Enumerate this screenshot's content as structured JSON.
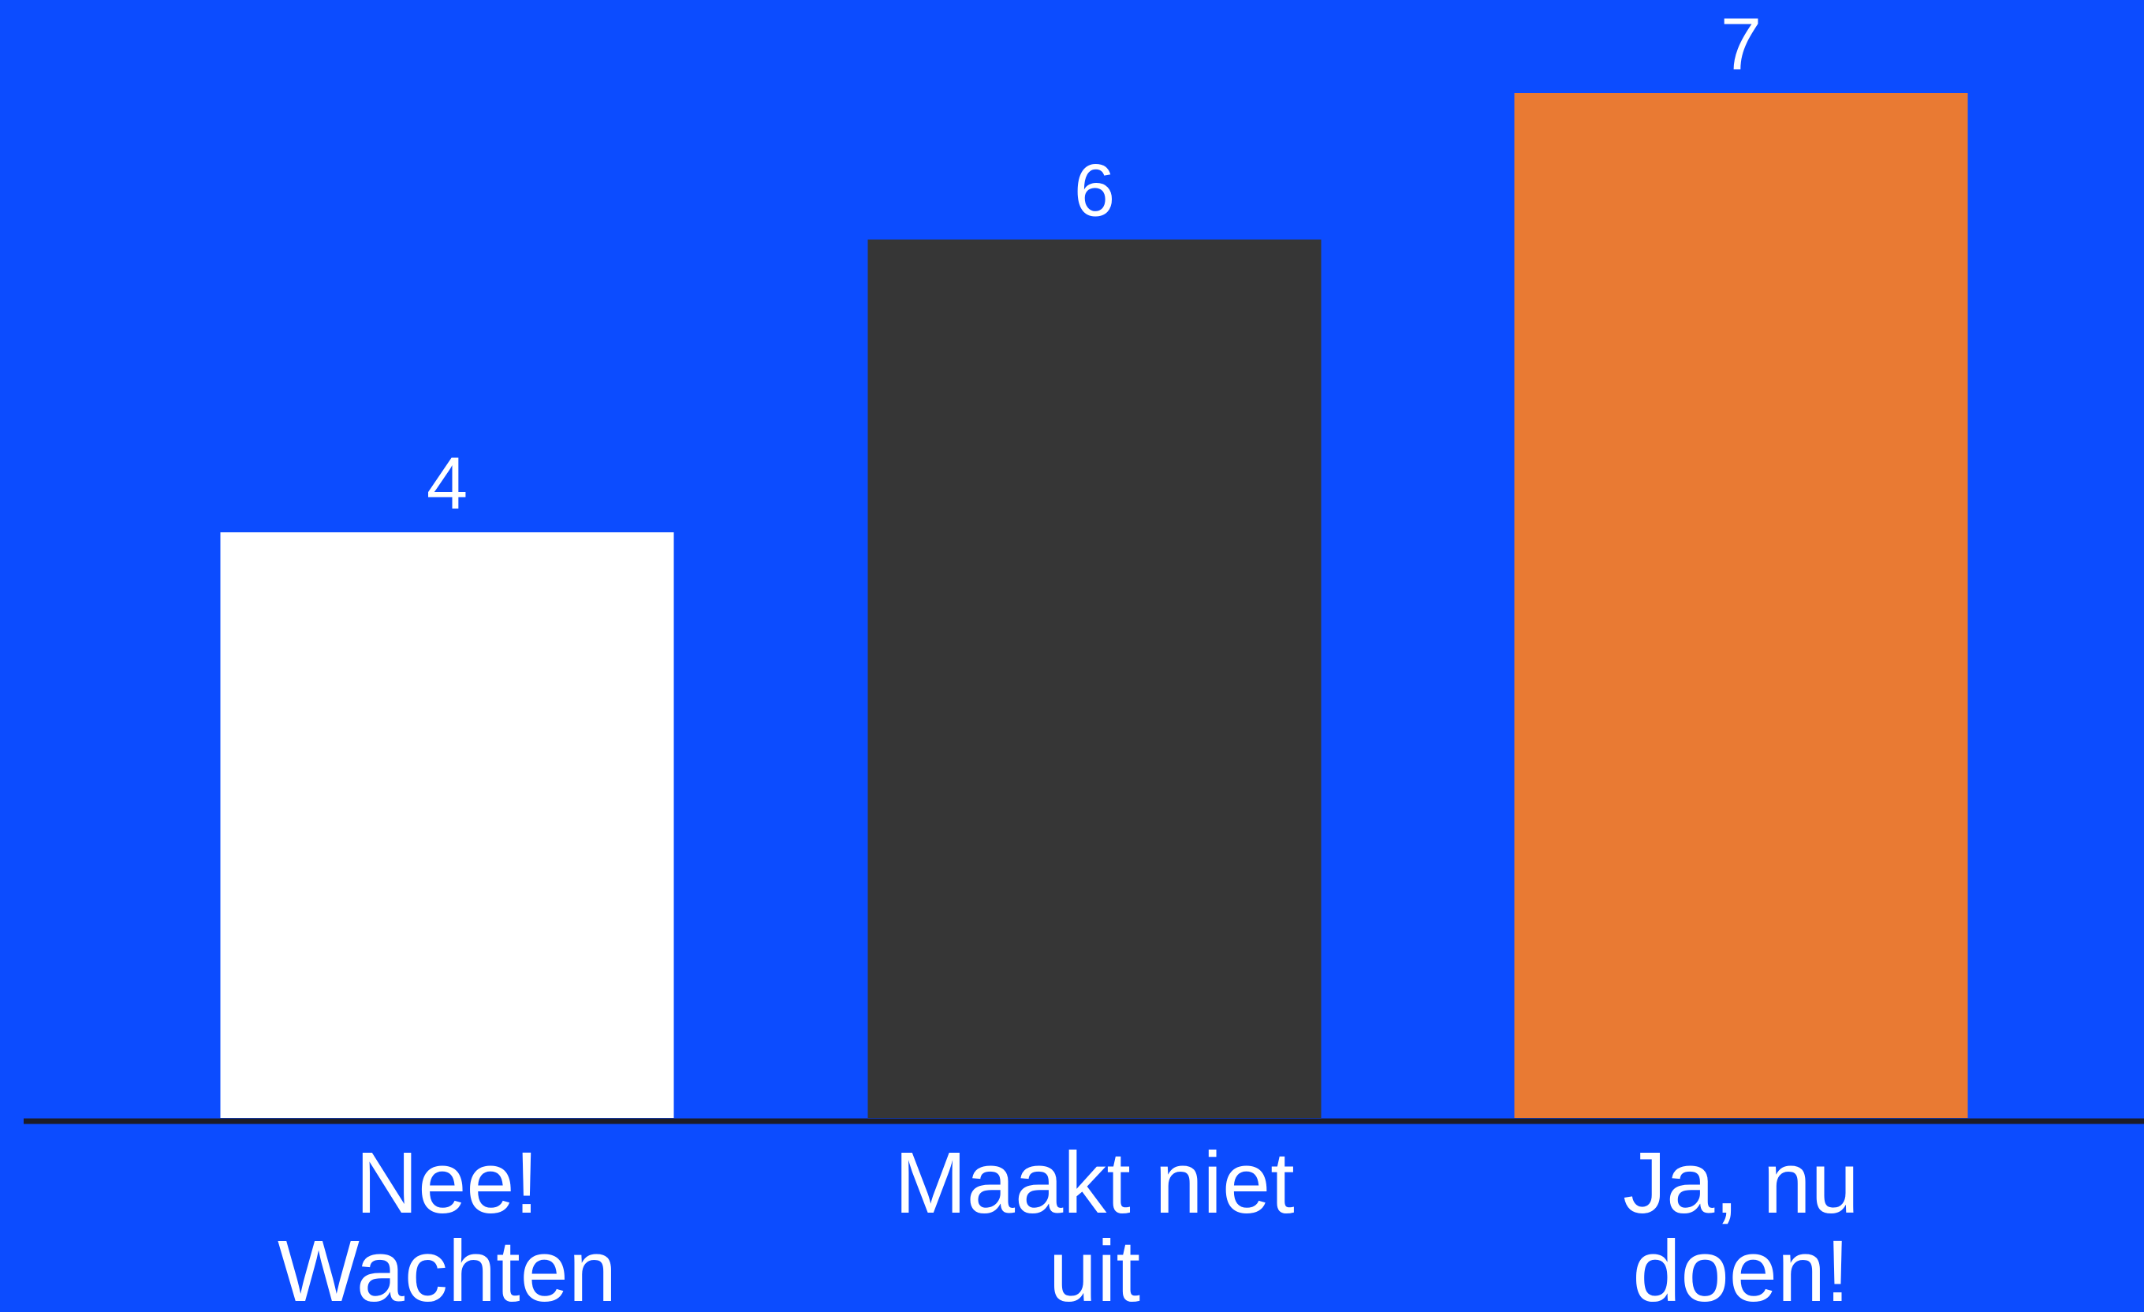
{
  "chart_data": {
    "type": "bar",
    "categories": [
      "Nee! Wachten",
      "Maakt niet uit",
      "Ja, nu doen!"
    ],
    "category_lines": [
      [
        "Nee!",
        "Wachten"
      ],
      [
        "Maakt niet",
        "uit"
      ],
      [
        "Ja, nu",
        "doen!"
      ]
    ],
    "values": [
      4,
      6,
      7
    ],
    "value_labels": [
      "4",
      "6",
      "7"
    ],
    "bar_colors": [
      "#ffffff",
      "#363636",
      "#e97a33"
    ],
    "ylim": [
      0,
      7
    ],
    "title": "",
    "xlabel": "",
    "ylabel": "",
    "grid": false,
    "legend": "none"
  },
  "colors": {
    "background": "#0c4cff",
    "axis": "#1c1c28",
    "text": "#ffffff"
  }
}
